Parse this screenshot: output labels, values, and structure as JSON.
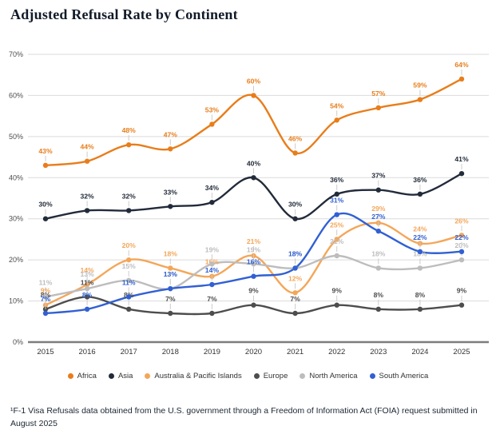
{
  "page": {
    "title": "Adjusted Refusal Rate by Continent",
    "footnote": "¹F-1 Visa Refusals data obtained from the U.S. government through a Freedom of Information Act (FOIA) request submitted in August 2025"
  },
  "chart_data": {
    "type": "line",
    "title": "Adjusted Refusal Rate by Continent",
    "x": [
      2015,
      2016,
      2017,
      2018,
      2019,
      2020,
      2021,
      2022,
      2023,
      2024,
      2025
    ],
    "series": [
      {
        "name": "Africa",
        "color": "#E87D1A",
        "values": [
          43,
          44,
          48,
          47,
          53,
          60,
          46,
          54,
          57,
          59,
          64
        ]
      },
      {
        "name": "Asia",
        "color": "#222B3A",
        "values": [
          30,
          32,
          32,
          33,
          34,
          40,
          30,
          36,
          37,
          36,
          41
        ]
      },
      {
        "name": "Australia & Pacific Islands",
        "color": "#F4A659",
        "values": [
          9,
          14,
          20,
          18,
          16,
          21,
          12,
          25,
          29,
          24,
          26
        ]
      },
      {
        "name": "Europe",
        "color": "#4D4D4D",
        "values": [
          8,
          11,
          8,
          7,
          7,
          9,
          7,
          9,
          8,
          8,
          9
        ]
      },
      {
        "name": "North America",
        "color": "#BDBDBD",
        "values": [
          11,
          13,
          15,
          13,
          19,
          19,
          18,
          21,
          18,
          18,
          20
        ]
      },
      {
        "name": "South America",
        "color": "#3160D3",
        "values": [
          7,
          8,
          11,
          13,
          14,
          16,
          18,
          31,
          27,
          22,
          22
        ]
      }
    ],
    "ylim": [
      0,
      70
    ],
    "ytick_step": 10,
    "ytick_labels": [
      "0%",
      "10%",
      "20%",
      "30%",
      "40%",
      "50%",
      "60%",
      "70%"
    ],
    "value_label_suffix": "%",
    "grid": true,
    "legend_position": "bottom",
    "colors": {
      "gridline": "#DBDBDB",
      "axis_line": "#7D7D7D",
      "tick_label": "#4D4D4D",
      "x_label": "#333333",
      "leader_tick": "#CCCCCC"
    }
  }
}
